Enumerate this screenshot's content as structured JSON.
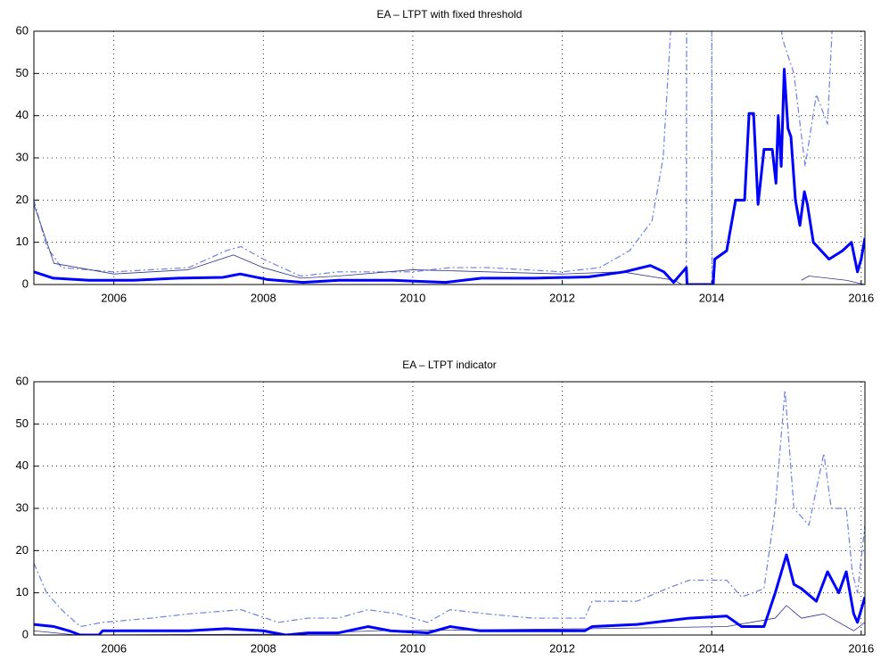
{
  "chart_data": [
    {
      "type": "line",
      "title": "EA – LTPT with fixed threshold",
      "xlim": [
        2004.93,
        2016.05
      ],
      "ylim": [
        0,
        60
      ],
      "xticks": [
        2006,
        2008,
        2010,
        2012,
        2014,
        2016
      ],
      "yticks": [
        0,
        10,
        20,
        30,
        40,
        50,
        60
      ],
      "grid": true,
      "series": [
        {
          "color": "#7080e0",
          "width": 1.2,
          "dash": "7 3 2 3",
          "x": [
            2004.93,
            2005.1,
            2005.3,
            2006,
            2007,
            2007.5,
            2007.7,
            2008,
            2008.5,
            2009,
            2010,
            2010.5,
            2011,
            2012,
            2012.5,
            2012.9,
            2013.2,
            2013.35,
            2013.45,
            2013.5,
            2013.6,
            2013.66,
            2013.665,
            2013.7,
            2014.0,
            2014.005,
            2014.1,
            2014.85,
            2014.95,
            2015.1,
            2015.25,
            2015.4,
            2015.55,
            2015.65
          ],
          "values": [
            20,
            9,
            4,
            3,
            4,
            8,
            9,
            6,
            2,
            3,
            3,
            4,
            4,
            3,
            4,
            8,
            15,
            30,
            60,
            70,
            null,
            0,
            70,
            null,
            70,
            0,
            null,
            70,
            58,
            50,
            28,
            45,
            38,
            75
          ]
        },
        {
          "color": "#33338a",
          "width": 0.8,
          "dash": "none",
          "x": [
            2004.93,
            2005.2,
            2006,
            2007,
            2007.6,
            2008,
            2008.5,
            2009,
            2010,
            2011,
            2012,
            2012.8,
            2013.5,
            2013.6,
            2014.9,
            2015.2,
            2015.3,
            2015.8,
            2016.05
          ],
          "values": [
            19,
            5,
            2.5,
            3.5,
            7,
            4,
            1.5,
            2,
            3.5,
            3,
            2.5,
            3,
            1,
            0,
            null,
            1,
            2,
            1,
            0
          ]
        },
        {
          "color": "#0000ff",
          "width": 3,
          "dash": "none",
          "x": [
            2004.93,
            2005.19,
            2005.67,
            2006.26,
            2006.86,
            2007.46,
            2007.69,
            2008.05,
            2008.53,
            2009.01,
            2009.72,
            2010.44,
            2010.92,
            2011.63,
            2012.35,
            2012.83,
            2013.18,
            2013.36,
            2013.49,
            2013.66,
            2013.67,
            2014.02,
            2014.04,
            2014.2,
            2014.32,
            2014.44,
            2014.5,
            2014.56,
            2014.62,
            2014.7,
            2014.81,
            2014.86,
            2014.89,
            2014.93,
            2014.97,
            2015.02,
            2015.06,
            2015.12,
            2015.18,
            2015.24,
            2015.28,
            2015.36,
            2015.57,
            2015.75,
            2015.87,
            2015.95,
            2016.0,
            2016.05
          ],
          "values": [
            3,
            1.5,
            1,
            1,
            1.5,
            1.7,
            2.5,
            1.2,
            0.5,
            1,
            1,
            0.5,
            1.5,
            1.5,
            1.8,
            3,
            4.5,
            3,
            0.5,
            4,
            0,
            0,
            6,
            8,
            20,
            20,
            40.5,
            40.5,
            19,
            32,
            32,
            24,
            40,
            28,
            51,
            37,
            35,
            20,
            14,
            22,
            19,
            10,
            6,
            8,
            10,
            3,
            6,
            11
          ]
        }
      ]
    },
    {
      "type": "line",
      "title": "EA – LTPT indicator",
      "xlim": [
        2004.93,
        2016.05
      ],
      "ylim": [
        0,
        60
      ],
      "xticks": [
        2006,
        2008,
        2010,
        2012,
        2014,
        2016
      ],
      "yticks": [
        0,
        10,
        20,
        30,
        40,
        50,
        60
      ],
      "grid": true,
      "series": [
        {
          "color": "#7080e0",
          "width": 1.2,
          "dash": "7 3 2 3",
          "x": [
            2004.93,
            2005.1,
            2005.3,
            2005.55,
            2005.85,
            2006.5,
            2007,
            2007.7,
            2008.2,
            2008.6,
            2009,
            2009.4,
            2009.8,
            2010.2,
            2010.5,
            2011,
            2011.6,
            2012.3,
            2012.4,
            2013,
            2013.4,
            2013.7,
            2014.2,
            2014.4,
            2014.7,
            2014.85,
            2014.98,
            2015.1,
            2015.3,
            2015.5,
            2015.6,
            2015.8,
            2015.88,
            2015.95,
            2016.05
          ],
          "values": [
            17,
            10,
            6,
            2,
            3,
            4,
            5,
            6,
            3,
            4,
            4,
            6,
            5,
            3,
            6,
            5,
            4,
            4,
            8,
            8,
            11,
            13,
            13,
            9,
            11,
            30,
            58,
            30,
            26,
            43,
            30,
            30,
            15,
            10,
            26
          ]
        },
        {
          "color": "#33338a",
          "width": 0.8,
          "dash": "none",
          "x": [
            2004.93,
            2005.5,
            2008.3,
            2009.5,
            2012.4,
            2014.2,
            2014.85,
            2015,
            2015.2,
            2015.5,
            2015.9,
            2016.05
          ],
          "values": [
            1,
            0,
            0.2,
            1,
            1.5,
            2,
            4,
            7,
            4,
            5,
            1,
            3
          ]
        },
        {
          "color": "#0000ff",
          "width": 3,
          "dash": "none",
          "x": [
            2004.93,
            2005.2,
            2005.4,
            2005.55,
            2005.8,
            2005.85,
            2007,
            2007.5,
            2008,
            2008.3,
            2008.6,
            2009,
            2009.4,
            2009.7,
            2010.2,
            2010.5,
            2010.9,
            2011.6,
            2012.3,
            2012.4,
            2013,
            2013.7,
            2014.2,
            2014.4,
            2014.7,
            2014.85,
            2015,
            2015.1,
            2015.2,
            2015.4,
            2015.55,
            2015.7,
            2015.8,
            2015.9,
            2015.95,
            2016.05
          ],
          "values": [
            2.5,
            2,
            1,
            0,
            0,
            1,
            1,
            1.5,
            1,
            0,
            0.5,
            0.5,
            2,
            1,
            0.5,
            2,
            1,
            1,
            1,
            2,
            2.5,
            4,
            4.5,
            2,
            2,
            10,
            19,
            12,
            11,
            8,
            15,
            10,
            15,
            5,
            3,
            9
          ]
        }
      ]
    }
  ]
}
